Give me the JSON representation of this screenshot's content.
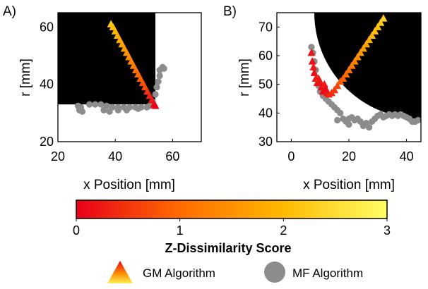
{
  "panels": [
    {
      "id": "A",
      "label": "A)",
      "xlabel": "x Position [mm]",
      "ylabel": "r [mm]",
      "xlim": [
        20,
        70
      ],
      "ylim": [
        20,
        65
      ],
      "xticks": [
        "20",
        "40",
        "60"
      ],
      "yticks": [
        "20",
        "40",
        "60"
      ]
    },
    {
      "id": "B",
      "label": "B)",
      "xlabel": "x Position [mm]",
      "ylabel": "r [mm]",
      "xlim": [
        -5,
        45
      ],
      "ylim": [
        30,
        75
      ],
      "xticks": [
        "0",
        "20",
        "40"
      ],
      "yticks": [
        "30",
        "40",
        "50",
        "60",
        "70"
      ]
    }
  ],
  "colorbar": {
    "label": "Z-Dissimilarity Score",
    "ticks": [
      "0",
      "1",
      "2",
      "3"
    ],
    "range": [
      0,
      3
    ],
    "colors": [
      "#e8001a",
      "#ff6a00",
      "#ffb800",
      "#ffff66"
    ]
  },
  "legend": {
    "gm_label": "GM Algorithm",
    "mf_label": "MF Algorithm"
  },
  "colors": {
    "mf_marker": "#8c8c8c",
    "obstacle": "#000000"
  },
  "chart_data": [
    {
      "panel": "A",
      "type": "scatter",
      "xlabel": "x Position [mm]",
      "ylabel": "r [mm]",
      "xlim": [
        20,
        70
      ],
      "ylim": [
        20,
        65
      ],
      "grid": false,
      "obstacle_polygon": [
        [
          20,
          65
        ],
        [
          54,
          65
        ],
        [
          54,
          33
        ],
        [
          20,
          33
        ]
      ],
      "series": [
        {
          "name": "GM Algorithm",
          "marker": "triangle",
          "points": [
            [
              38.5,
              61,
              2.2
            ],
            [
              39.2,
              60,
              2.1
            ],
            [
              40,
              58.5,
              2.0
            ],
            [
              40.8,
              57,
              1.9
            ],
            [
              41.6,
              55.5,
              1.8
            ],
            [
              42.4,
              54,
              1.7
            ],
            [
              43.2,
              52.5,
              1.6
            ],
            [
              44,
              51,
              1.5
            ],
            [
              44.8,
              49.5,
              1.4
            ],
            [
              45.6,
              48,
              1.3
            ],
            [
              46.4,
              46.5,
              1.2
            ],
            [
              47.2,
              45,
              1.1
            ],
            [
              48,
              43.5,
              1.0
            ],
            [
              48.8,
              42,
              0.9
            ],
            [
              49.6,
              40.5,
              0.8
            ],
            [
              50.4,
              39,
              0.7
            ],
            [
              51.2,
              37.5,
              0.5
            ],
            [
              52,
              36,
              0.35
            ],
            [
              52.8,
              34.5,
              0.2
            ],
            [
              53.5,
              33,
              0.1
            ],
            [
              54,
              32.5,
              0.05
            ]
          ]
        },
        {
          "name": "MF Algorithm",
          "marker": "circle",
          "points": [
            [
              27,
              32.5
            ],
            [
              28,
              32
            ],
            [
              27.5,
              31
            ],
            [
              28.5,
              30.5
            ],
            [
              31,
              33
            ],
            [
              33,
              33
            ],
            [
              35,
              33
            ],
            [
              37,
              32.5
            ],
            [
              39,
              32
            ],
            [
              41,
              32
            ],
            [
              43,
              32
            ],
            [
              45,
              32
            ],
            [
              47,
              32
            ],
            [
              49,
              32
            ],
            [
              51,
              32
            ],
            [
              36,
              31
            ],
            [
              38,
              30.5
            ],
            [
              41,
              31
            ],
            [
              44,
              31
            ],
            [
              48,
              31.5
            ],
            [
              52,
              32.5
            ],
            [
              53,
              34
            ],
            [
              54,
              36.5
            ],
            [
              54.5,
              39
            ],
            [
              55,
              41
            ],
            [
              55.5,
              43
            ],
            [
              55.5,
              45
            ],
            [
              56.5,
              46
            ],
            [
              57,
              45.5
            ]
          ]
        }
      ]
    },
    {
      "panel": "B",
      "type": "scatter",
      "xlabel": "x Position [mm]",
      "ylabel": "r [mm]",
      "xlim": [
        -5,
        45
      ],
      "ylim": [
        30,
        75
      ],
      "grid": false,
      "obstacle_circle": {
        "cx": 45,
        "cy": 75,
        "r": 37
      },
      "series": [
        {
          "name": "GM Algorithm",
          "marker": "triangle",
          "points": [
            [
              7,
              61,
              0.2
            ],
            [
              7.3,
              58,
              0.15
            ],
            [
              7.7,
              56,
              0.25
            ],
            [
              8,
              54,
              0.1
            ],
            [
              8.5,
              52,
              0.2
            ],
            [
              9,
              50.5,
              0.15
            ],
            [
              9.5,
              52,
              0.3
            ],
            [
              10,
              51,
              0.2
            ],
            [
              10.5,
              49,
              0.1
            ],
            [
              11,
              47.5,
              0.15
            ],
            [
              11.5,
              50,
              0.25
            ],
            [
              12,
              48.5,
              0.1
            ],
            [
              12.5,
              47,
              0.2
            ],
            [
              13,
              46.5,
              0.3
            ],
            [
              14,
              47,
              0.4
            ],
            [
              15,
              48,
              0.5
            ],
            [
              16,
              49.5,
              0.65
            ],
            [
              17,
              51,
              0.8
            ],
            [
              18,
              52,
              0.9
            ],
            [
              19,
              53.5,
              1.0
            ],
            [
              20,
              55,
              1.1
            ],
            [
              21,
              56.5,
              1.2
            ],
            [
              22,
              58,
              1.3
            ],
            [
              23,
              59.5,
              1.45
            ],
            [
              24,
              61,
              1.55
            ],
            [
              25,
              62.5,
              1.65
            ],
            [
              26,
              64,
              1.75
            ],
            [
              27,
              65.5,
              1.85
            ],
            [
              28,
              67,
              1.95
            ],
            [
              29,
              68.5,
              2.05
            ],
            [
              30,
              70,
              2.15
            ],
            [
              31,
              71.5,
              2.25
            ],
            [
              32,
              73,
              2.35
            ]
          ]
        },
        {
          "name": "MF Algorithm",
          "marker": "circle",
          "points": [
            [
              7,
              63
            ],
            [
              7.5,
              61
            ],
            [
              8,
              58
            ],
            [
              8.5,
              55
            ],
            [
              9,
              52
            ],
            [
              9.5,
              49.5
            ],
            [
              10,
              47.5
            ],
            [
              11,
              46
            ],
            [
              12,
              45
            ],
            [
              13,
              44
            ],
            [
              14,
              43
            ],
            [
              15,
              42
            ],
            [
              16,
              41
            ],
            [
              17,
              40
            ],
            [
              18,
              38
            ],
            [
              19,
              37
            ],
            [
              20,
              38
            ],
            [
              21,
              38.5
            ],
            [
              22,
              37.5
            ],
            [
              23,
              38
            ],
            [
              24,
              37
            ],
            [
              25,
              36
            ],
            [
              26,
              36.5
            ],
            [
              27,
              35
            ],
            [
              28,
              37
            ],
            [
              29,
              38
            ],
            [
              30,
              39
            ],
            [
              31,
              39.5
            ],
            [
              32,
              38.5
            ],
            [
              33,
              39
            ],
            [
              34,
              39.5
            ],
            [
              35,
              39
            ],
            [
              36,
              39.5
            ],
            [
              37,
              39
            ],
            [
              38,
              39.5
            ],
            [
              39,
              39
            ],
            [
              40,
              38.5
            ],
            [
              41,
              38
            ],
            [
              42,
              37
            ],
            [
              43,
              37
            ],
            [
              44,
              37.5
            ],
            [
              16,
              37.5
            ],
            [
              20,
              36
            ],
            [
              25,
              35.5
            ],
            [
              27,
              35
            ]
          ]
        }
      ]
    }
  ]
}
